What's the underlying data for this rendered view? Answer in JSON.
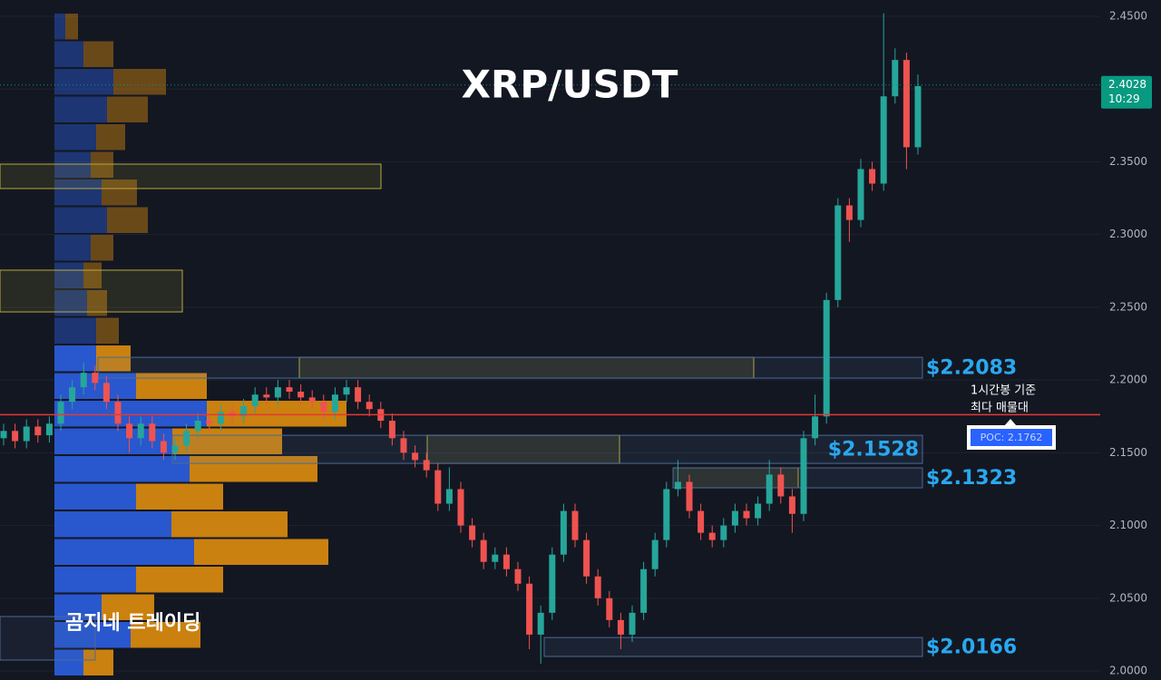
{
  "chart_data": {
    "type": "candlestick",
    "title": "XRP/USDT",
    "watermark": "곰지네 트레이딩",
    "up_color": "#26a69a",
    "down_color": "#ef5350",
    "ylim": [
      1.9938,
      2.4612
    ],
    "yticks": [
      {
        "value": 2.0,
        "label": "2.0000"
      },
      {
        "value": 2.05,
        "label": "2.0500"
      },
      {
        "value": 2.1,
        "label": "2.1000"
      },
      {
        "value": 2.15,
        "label": "2.1500"
      },
      {
        "value": 2.2,
        "label": "2.2000"
      },
      {
        "value": 2.25,
        "label": "2.2500"
      },
      {
        "value": 2.3,
        "label": "2.3000"
      },
      {
        "value": 2.35,
        "label": "2.3500"
      },
      {
        "value": 2.4,
        "label": "2.4000"
      },
      {
        "value": 2.45,
        "label": "2.4500"
      }
    ],
    "grid": true,
    "open": [
      2.16,
      2.165,
      2.158,
      2.168,
      2.162,
      2.17,
      2.185,
      2.195,
      2.205,
      2.198,
      2.185,
      2.17,
      2.16,
      2.17,
      2.158,
      2.15,
      2.155,
      2.165,
      2.172,
      2.17,
      2.178,
      2.175,
      2.182,
      2.19,
      2.188,
      2.195,
      2.192,
      2.188,
      2.185,
      2.178,
      2.19,
      2.195,
      2.185,
      2.18,
      2.172,
      2.16,
      2.15,
      2.145,
      2.138,
      2.115,
      2.125,
      2.1,
      2.09,
      2.075,
      2.08,
      2.07,
      2.06,
      2.025,
      2.04,
      2.08,
      2.11,
      2.09,
      2.065,
      2.05,
      2.035,
      2.025,
      2.04,
      2.07,
      2.09,
      2.125,
      2.13,
      2.11,
      2.095,
      2.09,
      2.1,
      2.11,
      2.105,
      2.115,
      2.135,
      2.12,
      2.108,
      2.16,
      2.175,
      2.255,
      2.32,
      2.31,
      2.345,
      2.335,
      2.395,
      2.42,
      2.36
    ],
    "high": [
      2.17,
      2.17,
      2.173,
      2.173,
      2.175,
      2.19,
      2.2,
      2.212,
      2.21,
      2.203,
      2.19,
      2.175,
      2.175,
      2.175,
      2.163,
      2.16,
      2.17,
      2.177,
      2.177,
      2.183,
      2.183,
      2.187,
      2.195,
      2.195,
      2.2,
      2.2,
      2.197,
      2.193,
      2.19,
      2.195,
      2.2,
      2.2,
      2.19,
      2.185,
      2.177,
      2.165,
      2.155,
      2.15,
      2.143,
      2.14,
      2.13,
      2.105,
      2.095,
      2.085,
      2.085,
      2.075,
      2.065,
      2.045,
      2.085,
      2.115,
      2.115,
      2.095,
      2.07,
      2.055,
      2.04,
      2.045,
      2.075,
      2.095,
      2.13,
      2.145,
      2.135,
      2.115,
      2.1,
      2.105,
      2.115,
      2.115,
      2.12,
      2.145,
      2.14,
      2.125,
      2.165,
      2.19,
      2.26,
      2.325,
      2.325,
      2.352,
      2.35,
      2.452,
      2.428,
      2.425,
      2.41
    ],
    "low": [
      2.155,
      2.153,
      2.153,
      2.157,
      2.157,
      2.165,
      2.18,
      2.19,
      2.193,
      2.18,
      2.165,
      2.15,
      2.155,
      2.153,
      2.145,
      2.145,
      2.15,
      2.16,
      2.165,
      2.165,
      2.17,
      2.17,
      2.177,
      2.183,
      2.183,
      2.187,
      2.183,
      2.18,
      2.173,
      2.173,
      2.185,
      2.18,
      2.175,
      2.167,
      2.155,
      2.145,
      2.14,
      2.133,
      2.11,
      2.11,
      2.095,
      2.085,
      2.07,
      2.07,
      2.065,
      2.055,
      2.015,
      2.005,
      2.035,
      2.075,
      2.085,
      2.06,
      2.045,
      2.03,
      2.015,
      2.02,
      2.035,
      2.065,
      2.085,
      2.12,
      2.105,
      2.09,
      2.085,
      2.085,
      2.095,
      2.1,
      2.1,
      2.11,
      2.115,
      2.095,
      2.103,
      2.155,
      2.17,
      2.25,
      2.295,
      2.305,
      2.33,
      2.33,
      2.39,
      2.345,
      2.355
    ],
    "close": [
      2.165,
      2.158,
      2.168,
      2.162,
      2.17,
      2.185,
      2.195,
      2.205,
      2.198,
      2.185,
      2.17,
      2.16,
      2.17,
      2.158,
      2.15,
      2.155,
      2.165,
      2.172,
      2.17,
      2.178,
      2.175,
      2.182,
      2.19,
      2.188,
      2.195,
      2.192,
      2.188,
      2.185,
      2.178,
      2.19,
      2.195,
      2.185,
      2.18,
      2.172,
      2.16,
      2.15,
      2.145,
      2.138,
      2.115,
      2.125,
      2.1,
      2.09,
      2.075,
      2.08,
      2.07,
      2.06,
      2.025,
      2.04,
      2.08,
      2.11,
      2.09,
      2.065,
      2.05,
      2.035,
      2.025,
      2.04,
      2.07,
      2.09,
      2.125,
      2.13,
      2.11,
      2.095,
      2.09,
      2.1,
      2.11,
      2.105,
      2.115,
      2.135,
      2.12,
      2.108,
      2.16,
      2.175,
      2.255,
      2.32,
      2.31,
      2.345,
      2.335,
      2.395,
      2.42,
      2.36,
      2.402
    ],
    "volume_profile": {
      "buy_color": "#2a5bd7",
      "sell_color": "#d4870f",
      "buy": [
        12,
        32,
        65,
        58,
        46,
        40,
        52,
        58,
        40,
        32,
        36,
        46,
        46,
        90,
        168,
        130,
        149,
        90,
        129,
        154,
        90,
        52,
        84,
        32
      ],
      "sell": [
        14,
        33,
        58,
        45,
        32,
        25,
        39,
        45,
        25,
        20,
        22,
        25,
        38,
        78,
        154,
        121,
        141,
        96,
        128,
        148,
        96,
        58,
        77,
        33
      ]
    },
    "zones": [
      {
        "top": 2.3484,
        "bottom": 2.3316
      },
      {
        "top": 2.2755,
        "bottom": 2.2468
      },
      {
        "top": 2.2156,
        "bottom": 2.2013
      },
      {
        "top": 2.162,
        "bottom": 2.1427
      },
      {
        "top": 2.1396,
        "bottom": 2.1259
      }
    ],
    "levels": [
      {
        "label": "$2.2083",
        "top": 2.2156,
        "bottom": 2.2013
      },
      {
        "label": "$2.1528",
        "top": 2.162,
        "bottom": 2.1427
      },
      {
        "label": "$2.1323",
        "top": 2.1396,
        "bottom": 2.1259
      },
      {
        "label": "$2.0166",
        "top": 2.023,
        "bottom": 2.01
      }
    ],
    "poc": {
      "value": 2.1762,
      "label": "POC: 2.1762",
      "note": [
        "1시간봉 기준",
        "최다 매물대"
      ],
      "color": "#e53935"
    },
    "last_price": {
      "value": 2.4028,
      "time": "10:29",
      "color": "#089981"
    }
  }
}
